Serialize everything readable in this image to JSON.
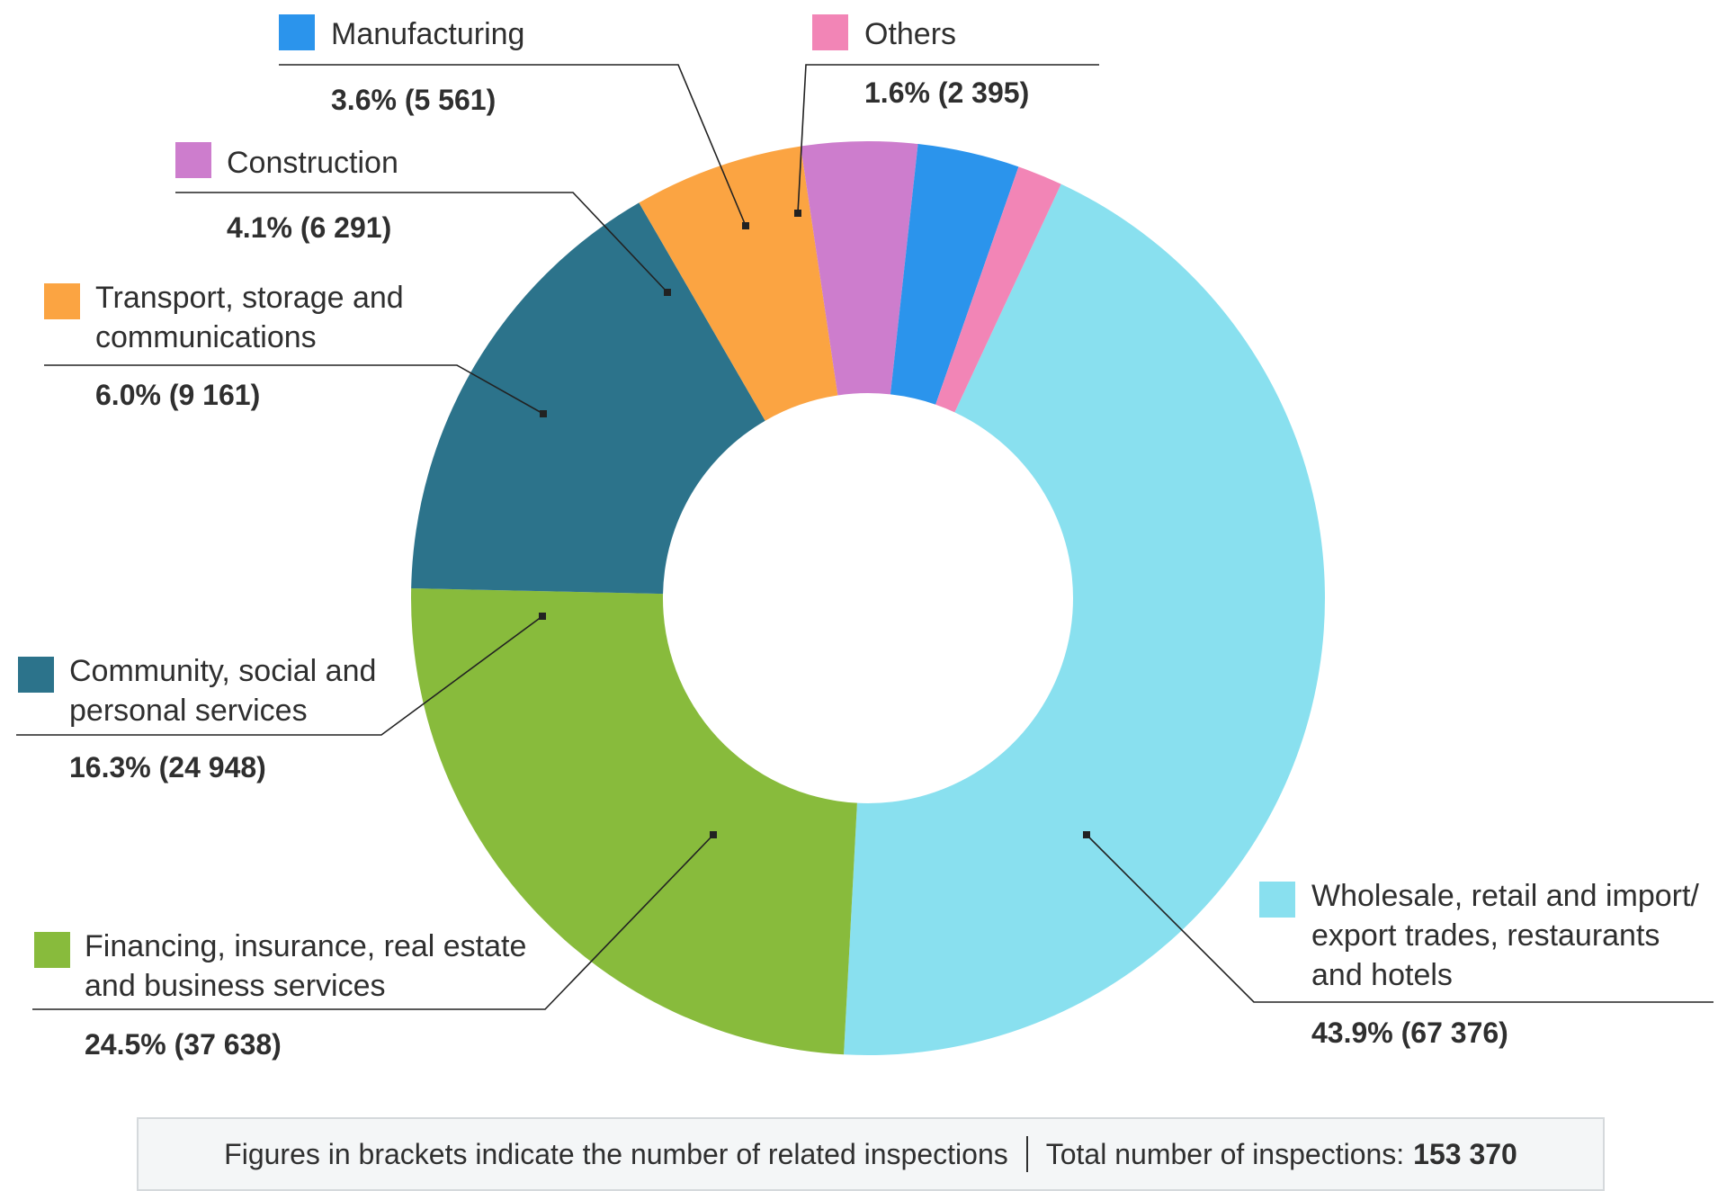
{
  "chart_data": {
    "type": "pie",
    "donut": true,
    "title": "",
    "slices": [
      {
        "name": "Wholesale, retail and import/ export trades, restaurants and hotels",
        "lines": [
          "Wholesale, retail and import/",
          "export trades, restaurants",
          "and hotels"
        ],
        "percent": 43.9,
        "count": 67376,
        "value_label": "43.9% (67 376)",
        "color": "#89E0EF"
      },
      {
        "name": "Financing, insurance, real estate and business services",
        "lines": [
          "Financing, insurance, real estate",
          "and business services"
        ],
        "percent": 24.5,
        "count": 37638,
        "value_label": "24.5% (37 638)",
        "color": "#88BB3C"
      },
      {
        "name": "Community, social and personal services",
        "lines": [
          "Community, social and",
          "personal services"
        ],
        "percent": 16.3,
        "count": 24948,
        "value_label": "16.3% (24 948)",
        "color": "#2C738B"
      },
      {
        "name": "Transport, storage and communications",
        "lines": [
          "Transport, storage and",
          "communications"
        ],
        "percent": 6.0,
        "count": 9161,
        "value_label": "6.0% (9 161)",
        "color": "#FBA442"
      },
      {
        "name": "Construction",
        "lines": [
          "Construction"
        ],
        "percent": 4.1,
        "count": 6291,
        "value_label": "4.1% (6 291)",
        "color": "#CD7DCD"
      },
      {
        "name": "Manufacturing",
        "lines": [
          "Manufacturing"
        ],
        "percent": 3.6,
        "count": 5561,
        "value_label": "3.6% (5 561)",
        "color": "#2B94EC"
      },
      {
        "name": "Others",
        "lines": [
          "Others"
        ],
        "percent": 1.6,
        "count": 2395,
        "value_label": "1.6% (2 395)",
        "color": "#F285B6"
      }
    ]
  },
  "footer": {
    "note": "Figures in brackets indicate the number of related inspections",
    "total_label": "Total number of inspections:",
    "total_value": "153 370"
  }
}
